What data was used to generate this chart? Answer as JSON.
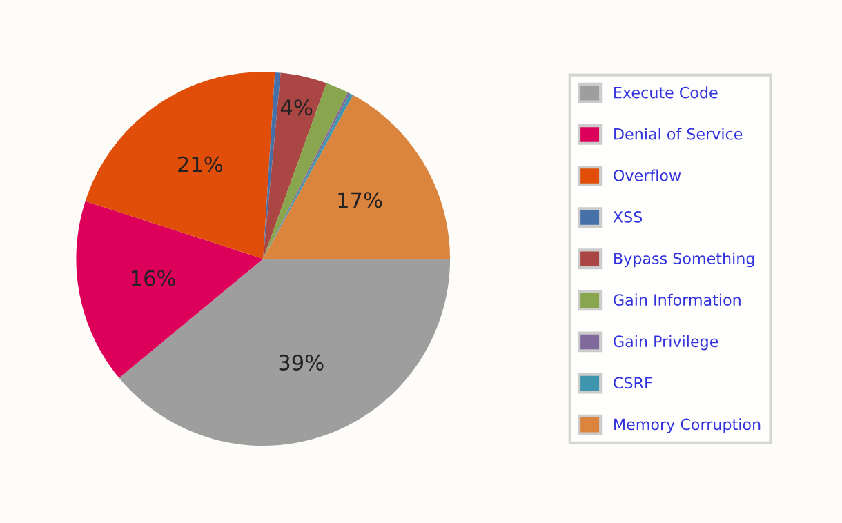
{
  "chart_data": {
    "type": "pie",
    "categories": [
      "Execute Code",
      "Denial of Service",
      "Overflow",
      "XSS",
      "Bypass Something",
      "Gain Information",
      "Gain Privilege",
      "CSRF",
      "Memory Corruption"
    ],
    "values": [
      39,
      16,
      21,
      0.5,
      4,
      2,
      0.2,
      0.3,
      17
    ],
    "colors": [
      "#9e9e9e",
      "#dc005a",
      "#e04e0a",
      "#4571a8",
      "#aa4643",
      "#89a54e",
      "#80699b",
      "#3d96ae",
      "#db843d"
    ],
    "value_labels": [
      "39%",
      "16%",
      "21%",
      null,
      "4%",
      null,
      null,
      null,
      "17%"
    ],
    "legend": "right"
  }
}
